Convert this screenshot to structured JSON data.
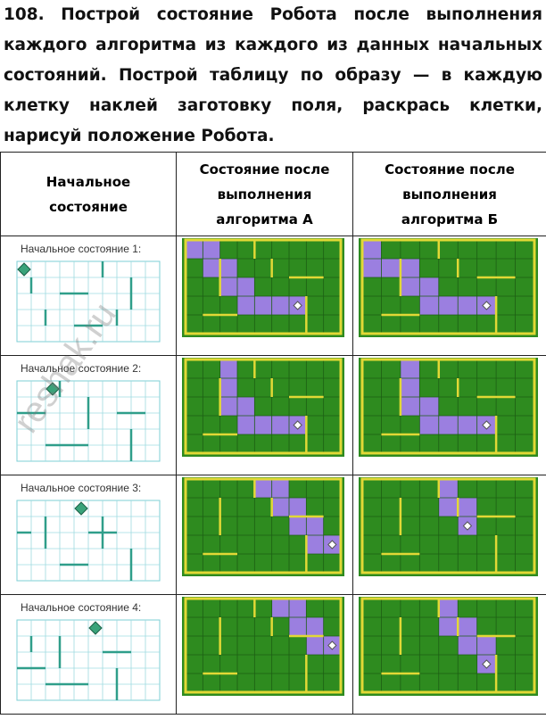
{
  "task": {
    "number": "108.",
    "text": "Построй состояние Робота после выполнения каждого алгоритма из каждого из данных начальных состояний. Построй таблицу по образу — в каждую клетку наклей заготовку поля, раскрась клетки, нарисуй положение Робота."
  },
  "table": {
    "header": [
      "Начальное состояние",
      "Состояние после выполнения алгоритма А",
      "Состояние после выполнения алгоритма Б"
    ],
    "rows": [
      "Начальное состояние 1:",
      "Начальное состояние 2:",
      "Начальное состояние 3:",
      "Начальное состояние 4:"
    ]
  },
  "watermark": "reshak.ru"
}
